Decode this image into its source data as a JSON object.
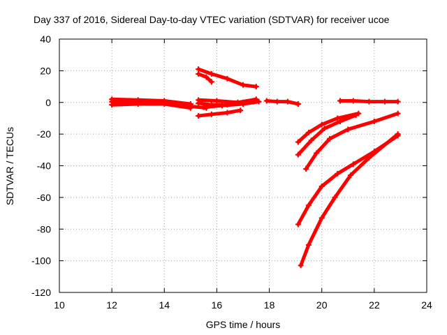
{
  "chart_data": {
    "type": "scatter",
    "title": "Day 337 of 2016, Sidereal Day-to-day VTEC variation (SDTVAR) for receiver ucoe",
    "xlabel": "GPS time / hours",
    "ylabel": "SDTVAR / TECUs",
    "xlim": [
      10,
      24
    ],
    "ylim": [
      -120,
      40
    ],
    "xticks": [
      10,
      12,
      14,
      16,
      18,
      20,
      22,
      24
    ],
    "yticks": [
      -120,
      -100,
      -80,
      -60,
      -40,
      -20,
      0,
      20,
      40
    ],
    "grid": true,
    "color": "#ff0000",
    "series": [
      {
        "x": [
          12.0,
          13.0,
          14.0,
          15.0,
          15.6
        ],
        "y": [
          0.5,
          0.5,
          0.0,
          -2.5,
          -3.5
        ]
      },
      {
        "x": [
          12.0,
          13.0,
          14.0,
          15.0
        ],
        "y": [
          2.0,
          1.5,
          1.0,
          -1.0
        ]
      },
      {
        "x": [
          12.0,
          13.0,
          14.0,
          15.0
        ],
        "y": [
          -1.5,
          -1.0,
          -1.0,
          -3.5
        ]
      },
      {
        "x": [
          15.3,
          15.8,
          16.4,
          17.0,
          17.4
        ],
        "y": [
          -0.5,
          -1.5,
          -1.5,
          0.0,
          0.5
        ]
      },
      {
        "x": [
          15.3,
          16.0,
          16.8,
          17.5
        ],
        "y": [
          1.5,
          1.0,
          0.0,
          2.0
        ]
      },
      {
        "x": [
          15.5,
          16.2,
          17.0,
          17.6
        ],
        "y": [
          -3.0,
          -2.0,
          -1.0,
          0.5
        ]
      },
      {
        "x": [
          15.3,
          15.8,
          16.4,
          16.9
        ],
        "y": [
          -8.5,
          -7.5,
          -6.5,
          -5.0
        ]
      },
      {
        "x": [
          15.3,
          15.8,
          16.4,
          17.0,
          17.5
        ],
        "y": [
          21.0,
          18.0,
          15.0,
          11.0,
          10.0
        ]
      },
      {
        "x": [
          15.3,
          15.6,
          15.8
        ],
        "y": [
          18.0,
          16.0,
          13.0
        ]
      },
      {
        "x": [
          17.9,
          18.3,
          18.7,
          19.1
        ],
        "y": [
          1.0,
          0.5,
          0.5,
          -1.0
        ]
      },
      {
        "x": [
          20.7,
          21.2,
          21.8,
          22.4,
          22.9
        ],
        "y": [
          1.0,
          1.0,
          0.5,
          0.5,
          0.5
        ]
      },
      {
        "x": [
          19.1,
          19.5,
          20.0,
          20.6,
          21.4
        ],
        "y": [
          -25.0,
          -19.0,
          -14.0,
          -10.0,
          -7.0
        ]
      },
      {
        "x": [
          19.1,
          19.6,
          20.1,
          20.7,
          21.3
        ],
        "y": [
          -33.0,
          -24.0,
          -16.5,
          -12.0,
          -8.0
        ]
      },
      {
        "x": [
          19.4,
          19.8,
          20.3,
          21.0,
          22.0,
          22.9
        ],
        "y": [
          -42.0,
          -32.0,
          -23.0,
          -17.0,
          -12.0,
          -7.0
        ]
      },
      {
        "x": [
          19.1,
          19.5,
          20.0,
          20.6,
          21.2,
          22.0,
          22.9
        ],
        "y": [
          -77.0,
          -65.0,
          -53.0,
          -45.0,
          -39.0,
          -31.0,
          -21.0
        ]
      },
      {
        "x": [
          19.2,
          19.5,
          20.0,
          20.5,
          21.1,
          21.8,
          22.9
        ],
        "y": [
          -103.0,
          -90.0,
          -73.0,
          -60.0,
          -46.0,
          -35.0,
          -20.0
        ]
      }
    ]
  }
}
